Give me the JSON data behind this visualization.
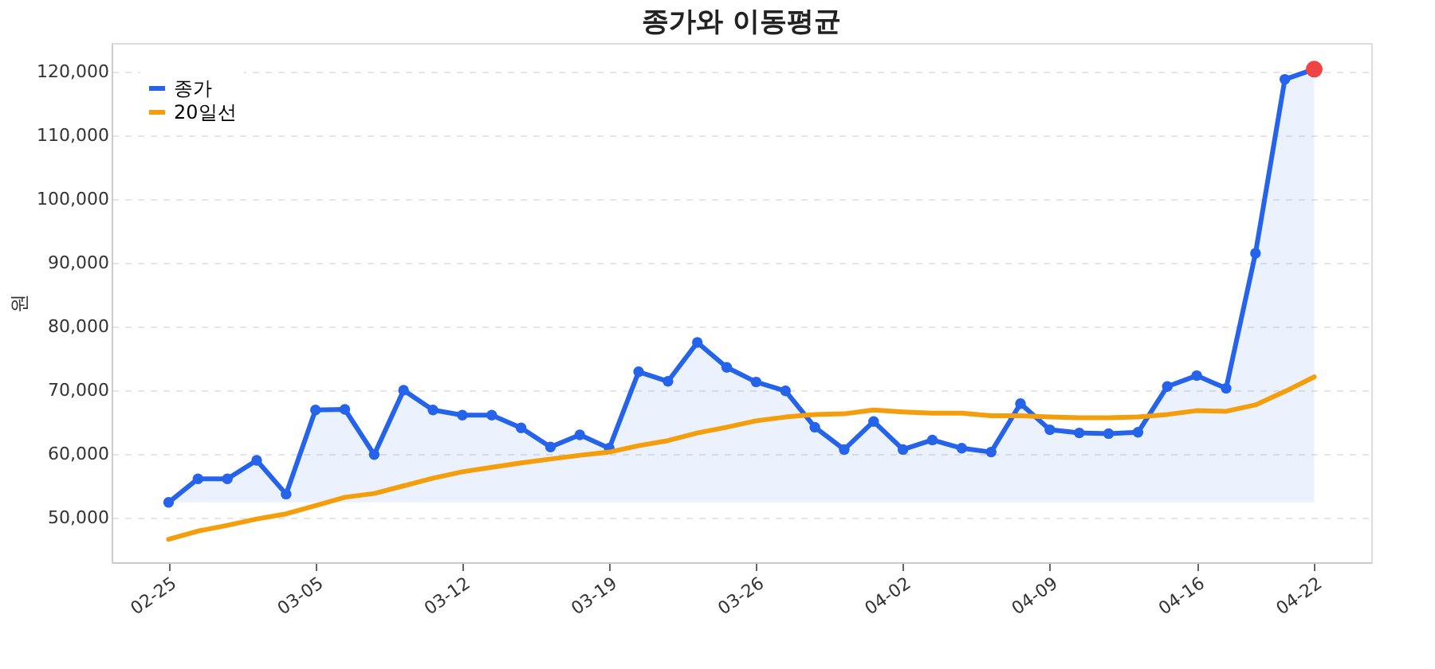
{
  "chart_data": {
    "type": "line",
    "title": "종가와 이동평균",
    "ylabel": "원",
    "categories": [
      "02-25",
      null,
      null,
      null,
      null,
      "03-05",
      null,
      null,
      null,
      null,
      "03-12",
      null,
      null,
      null,
      null,
      "03-19",
      null,
      null,
      null,
      null,
      "03-26",
      null,
      null,
      null,
      null,
      "04-02",
      null,
      null,
      null,
      null,
      "04-09",
      null,
      null,
      null,
      null,
      "04-16",
      null,
      null,
      null,
      "04-22"
    ],
    "series": [
      {
        "name": "종가",
        "type": "area",
        "color": "#2563eb",
        "marker": "circle",
        "values": [
          52400,
          56100,
          56100,
          59000,
          53700,
          66900,
          67000,
          59900,
          70000,
          66900,
          66100,
          66100,
          64100,
          61100,
          63000,
          60900,
          72900,
          71400,
          77500,
          73600,
          71300,
          69900,
          64200,
          60700,
          65100,
          60700,
          62200,
          60900,
          60300,
          67900,
          63800,
          63300,
          63200,
          63400,
          70600,
          72300,
          70300,
          91500,
          118800,
          120400
        ]
      },
      {
        "name": "20일선",
        "color": "#f59e0b",
        "values": [
          46600,
          47900,
          48800,
          49800,
          50600,
          51900,
          53200,
          53800,
          55000,
          56200,
          57200,
          57900,
          58600,
          59200,
          59800,
          60300,
          61300,
          62100,
          63300,
          64200,
          65200,
          65800,
          66200,
          66300,
          66900,
          66600,
          66400,
          66400,
          66000,
          66000,
          65800,
          65700,
          65700,
          65800,
          66200,
          66800,
          66700,
          67700,
          69800,
          72100
        ]
      },
      {
        "type": "scatter",
        "color": "#ef4444",
        "values": [
          null,
          null,
          null,
          null,
          null,
          null,
          null,
          null,
          null,
          null,
          null,
          null,
          null,
          null,
          null,
          null,
          null,
          null,
          null,
          null,
          null,
          null,
          null,
          null,
          null,
          null,
          null,
          null,
          null,
          null,
          null,
          null,
          null,
          null,
          null,
          null,
          null,
          null,
          null,
          120400
        ]
      }
    ],
    "ylim": [
      43000,
      124500
    ],
    "yticks": [
      {
        "value": 50000,
        "label": "50,000"
      },
      {
        "value": 60000,
        "label": "60,000"
      },
      {
        "value": 70000,
        "label": "70,000"
      },
      {
        "value": 80000,
        "label": "80,000"
      },
      {
        "value": 90000,
        "label": "90,000"
      },
      {
        "value": 100000,
        "label": "100,000"
      },
      {
        "value": 110000,
        "label": "110,000"
      },
      {
        "value": 120000,
        "label": "120,000"
      }
    ],
    "grid": "y",
    "legend": "top left",
    "line_style": "solid"
  }
}
